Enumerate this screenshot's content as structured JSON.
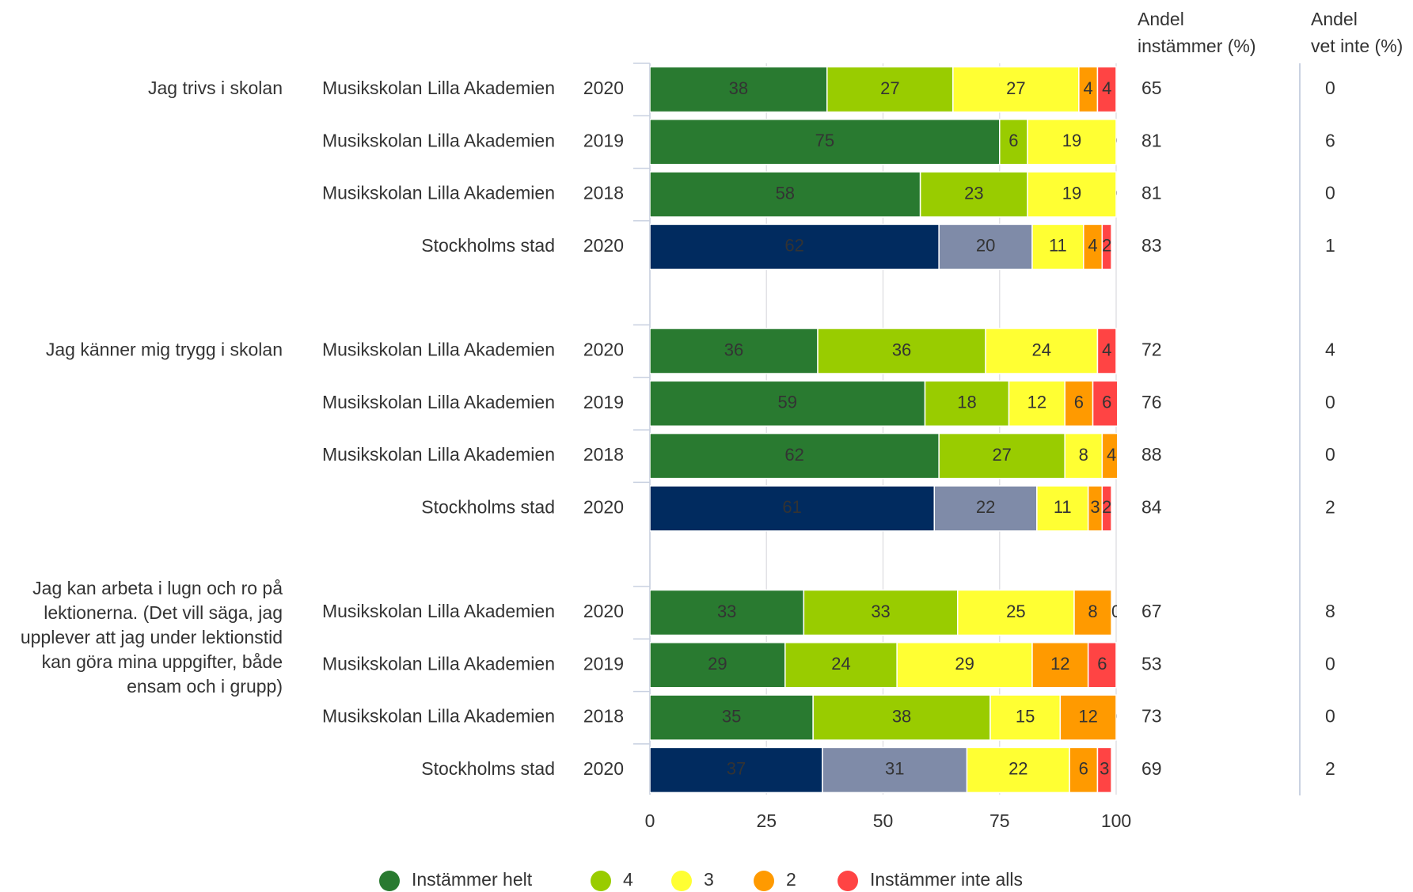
{
  "chart_data": {
    "type": "stacked-bar-horizontal",
    "questions": [
      [
        "Jag trivs i skolan"
      ],
      [
        "Jag känner mig trygg i skolan"
      ],
      [
        "Jag kan arbeta i lugn och ro på",
        "lektionerna. (Det vill säga, jag",
        "upplever att jag under lektionstid",
        "kan göra mina uppgifter, både",
        "ensam och i grupp)"
      ]
    ],
    "categories": [
      "Musikskolan Lilla Akademien",
      "Musikskolan Lilla Akademien",
      "Musikskolan Lilla Akademien",
      "Stockholms stad",
      "Musikskolan Lilla Akademien",
      "Musikskolan Lilla Akademien",
      "Musikskolan Lilla Akademien",
      "Stockholms stad",
      "Musikskolan Lilla Akademien",
      "Musikskolan Lilla Akademien",
      "Musikskolan Lilla Akademien",
      "Stockholms stad"
    ],
    "years": [
      "2020",
      "2019",
      "2018",
      "2020",
      "2020",
      "2019",
      "2018",
      "2020",
      "2020",
      "2019",
      "2018",
      "2020"
    ],
    "comparison_rows": [
      3,
      7,
      11
    ],
    "series": [
      {
        "name": "Instämmer helt",
        "color": "#297a30",
        "comparison_color": "#012b5f",
        "values": [
          38,
          75,
          58,
          62,
          36,
          59,
          62,
          61,
          33,
          29,
          35,
          37
        ]
      },
      {
        "name": "4",
        "color": "#99cc00",
        "comparison_color": "#7f8ba8",
        "values": [
          27,
          6,
          23,
          20,
          36,
          18,
          27,
          22,
          33,
          24,
          38,
          31
        ]
      },
      {
        "name": "3",
        "color": "#ffff33",
        "values": [
          27,
          19,
          19,
          11,
          24,
          12,
          8,
          11,
          25,
          29,
          15,
          22
        ]
      },
      {
        "name": "2",
        "color": "#ff9a00",
        "values": [
          4,
          0,
          0,
          4,
          0,
          6,
          4,
          3,
          8,
          12,
          12,
          6
        ]
      },
      {
        "name": "Instämmer inte alls",
        "color": "#ff4444",
        "values": [
          4,
          0,
          0,
          2,
          4,
          6,
          0,
          2,
          0,
          6,
          0,
          3
        ]
      }
    ],
    "agree": {
      "title": [
        "Andel",
        "instämmer (%)"
      ],
      "values": [
        65,
        81,
        81,
        83,
        72,
        76,
        88,
        84,
        67,
        53,
        73,
        69
      ]
    },
    "dont_know": {
      "title": [
        "Andel",
        "vet inte (%)"
      ],
      "values": [
        0,
        6,
        0,
        1,
        4,
        0,
        0,
        2,
        8,
        0,
        0,
        2
      ]
    },
    "xlim": [
      0,
      100
    ],
    "xticks": [
      0,
      25,
      50,
      75,
      100
    ],
    "grid": true
  }
}
